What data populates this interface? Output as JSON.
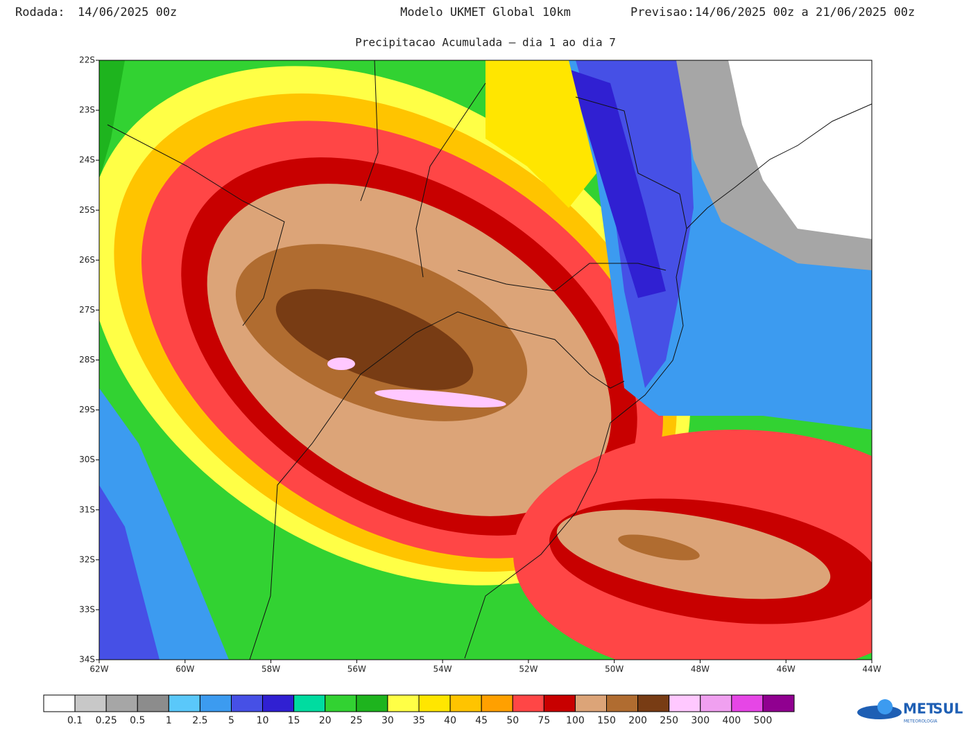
{
  "header": {
    "run_label": "Rodada:",
    "run_value": "14/06/2025 00z",
    "model": "Modelo UKMET Global 10km",
    "forecast_label": "Previsao:",
    "forecast_value": "14/06/2025 00z a 21/06/2025 00z",
    "subtitle": "Precipitacao Acumulada — dia 1 ao dia 7"
  },
  "map": {
    "latitudes": [
      "22S",
      "23S",
      "24S",
      "25S",
      "26S",
      "27S",
      "28S",
      "29S",
      "30S",
      "31S",
      "32S",
      "33S",
      "34S"
    ],
    "longitudes": [
      "62W",
      "60W",
      "58W",
      "56W",
      "54W",
      "52W",
      "50W",
      "48W",
      "46W",
      "44W"
    ]
  },
  "legend": {
    "colors": [
      "#ffffff",
      "#c8c8c8",
      "#a6a6a6",
      "#8c8c8c",
      "#5ac8fa",
      "#3c9bf0",
      "#4650e6",
      "#3020d2",
      "#00dca0",
      "#32d232",
      "#1eb41e",
      "#ffff46",
      "#ffe600",
      "#ffc400",
      "#ffa000",
      "#ff4646",
      "#c80000",
      "#dca478",
      "#b06c30",
      "#783c14",
      "#ffc8ff",
      "#f0a0f0",
      "#e646e6",
      "#900090"
    ],
    "levels": [
      0.1,
      0.25,
      0.5,
      1,
      2.5,
      5,
      10,
      15,
      20,
      25,
      30,
      35,
      40,
      45,
      50,
      75,
      100,
      150,
      200,
      250,
      300,
      400,
      500
    ]
  },
  "logo": {
    "name_a": "MET",
    "name_b": "SUL",
    "tagline": "METEOROLOGIA"
  }
}
